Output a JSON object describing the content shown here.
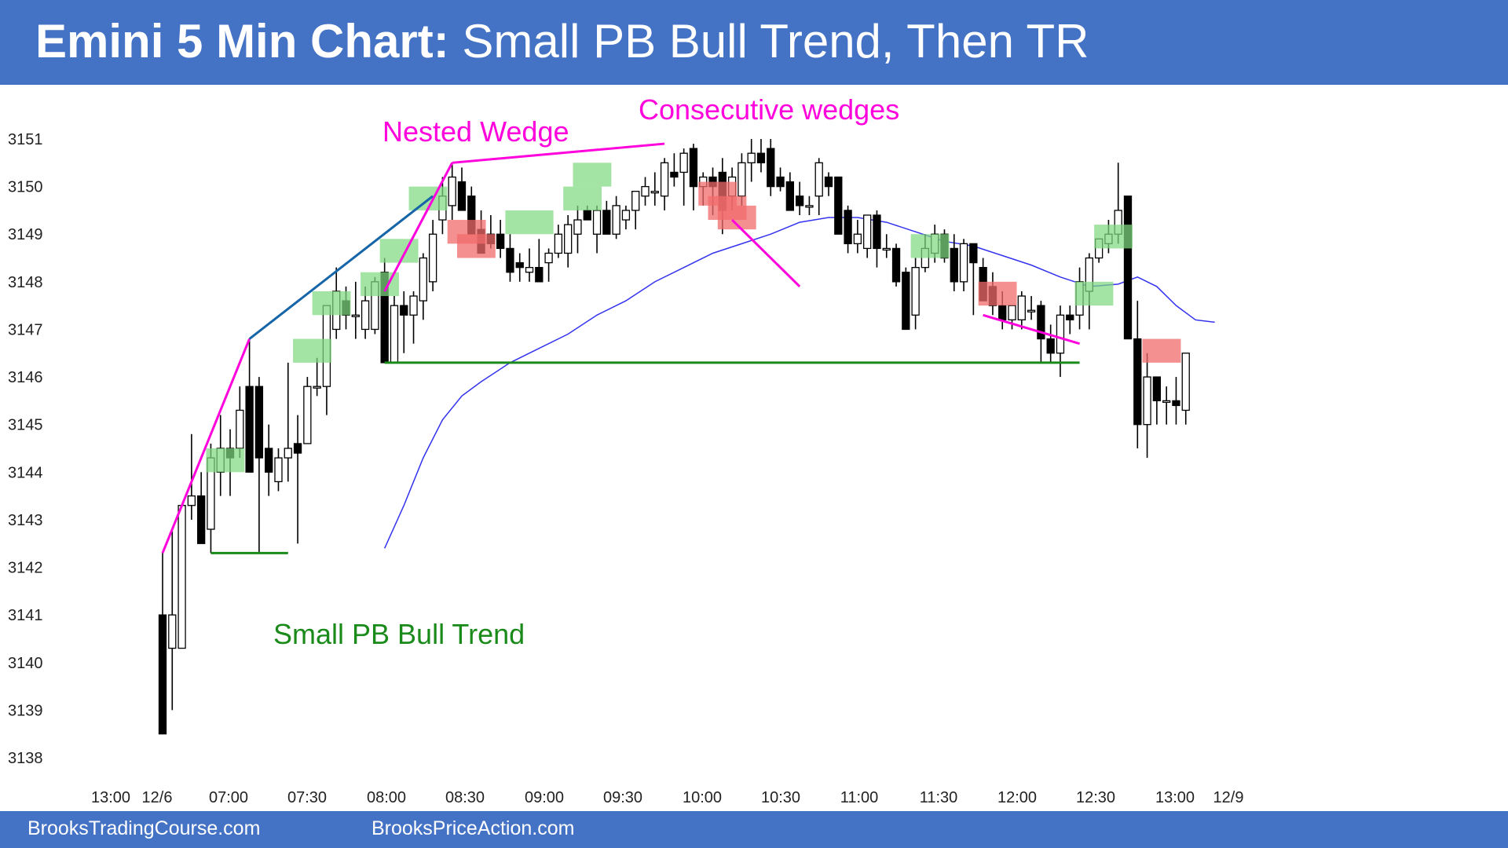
{
  "header": {
    "title_bold": "Emini 5 Min Chart:",
    "title_rest": "Small PB Bull Trend, Then TR"
  },
  "footer": {
    "left": "BrooksTradingCourse.com",
    "right": "BrooksPriceAction.com"
  },
  "chart_data": {
    "type": "candlestick",
    "ylim": [
      3138,
      3151
    ],
    "y_ticks": [
      3151,
      3150,
      3149,
      3148,
      3147,
      3146,
      3145,
      3144,
      3143,
      3142,
      3141,
      3140,
      3139,
      3138
    ],
    "x_tick_labels": [
      "13:00",
      "12/6",
      "07:00",
      "07:30",
      "08:00",
      "08:30",
      "09:00",
      "09:30",
      "10:00",
      "10:30",
      "11:00",
      "11:30",
      "12:00",
      "12:30",
      "13:00",
      "12/9"
    ],
    "grid": false,
    "legend": "none",
    "colors": {
      "up": "#ffffff",
      "down": "#000000",
      "ema": "#3333ee",
      "green_box": "#7fd87f",
      "red_box": "#f26b6b",
      "magenta": "#ff00dd",
      "blue": "#1565a8",
      "green_line": "#1a8a1a"
    },
    "bars": [
      {
        "o": 3141.0,
        "h": 3142.3,
        "l": 3138.5,
        "c": 3138.5
      },
      {
        "o": 3140.3,
        "h": 3142.8,
        "l": 3139.0,
        "c": 3141.0
      },
      {
        "o": 3140.3,
        "h": 3143.3,
        "l": 3140.3,
        "c": 3143.3
      },
      {
        "o": 3143.3,
        "h": 3144.8,
        "l": 3143.0,
        "c": 3143.5
      },
      {
        "o": 3143.5,
        "h": 3144.0,
        "l": 3142.5,
        "c": 3142.5
      },
      {
        "o": 3142.8,
        "h": 3144.6,
        "l": 3142.3,
        "c": 3144.3
      },
      {
        "o": 3144.0,
        "h": 3145.2,
        "l": 3143.5,
        "c": 3144.5
      },
      {
        "o": 3144.5,
        "h": 3144.9,
        "l": 3143.5,
        "c": 3144.3
      },
      {
        "o": 3144.5,
        "h": 3145.8,
        "l": 3144.3,
        "c": 3145.3
      },
      {
        "o": 3145.8,
        "h": 3146.8,
        "l": 3144.0,
        "c": 3144.0
      },
      {
        "o": 3145.8,
        "h": 3146.0,
        "l": 3142.3,
        "c": 3144.3
      },
      {
        "o": 3144.5,
        "h": 3145.0,
        "l": 3143.5,
        "c": 3144.0
      },
      {
        "o": 3143.8,
        "h": 3144.5,
        "l": 3143.6,
        "c": 3144.3
      },
      {
        "o": 3144.3,
        "h": 3146.3,
        "l": 3143.8,
        "c": 3144.5
      },
      {
        "o": 3144.6,
        "h": 3145.2,
        "l": 3142.5,
        "c": 3144.4
      },
      {
        "o": 3144.6,
        "h": 3146.0,
        "l": 3144.6,
        "c": 3145.8
      },
      {
        "o": 3145.8,
        "h": 3146.4,
        "l": 3145.6,
        "c": 3145.8
      },
      {
        "o": 3145.8,
        "h": 3147.5,
        "l": 3145.2,
        "c": 3147.5
      },
      {
        "o": 3147.0,
        "h": 3148.3,
        "l": 3146.8,
        "c": 3147.8
      },
      {
        "o": 3147.6,
        "h": 3147.9,
        "l": 3147.0,
        "c": 3147.3
      },
      {
        "o": 3147.3,
        "h": 3148.0,
        "l": 3146.8,
        "c": 3147.3
      },
      {
        "o": 3147.0,
        "h": 3147.9,
        "l": 3146.8,
        "c": 3147.6
      },
      {
        "o": 3147.0,
        "h": 3148.1,
        "l": 3146.9,
        "c": 3148.0
      },
      {
        "o": 3148.2,
        "h": 3148.5,
        "l": 3146.3,
        "c": 3146.3
      },
      {
        "o": 3146.3,
        "h": 3147.7,
        "l": 3146.3,
        "c": 3147.5
      },
      {
        "o": 3147.5,
        "h": 3147.8,
        "l": 3146.5,
        "c": 3147.3
      },
      {
        "o": 3147.3,
        "h": 3147.8,
        "l": 3146.7,
        "c": 3147.7
      },
      {
        "o": 3147.6,
        "h": 3148.6,
        "l": 3147.2,
        "c": 3148.5
      },
      {
        "o": 3148.0,
        "h": 3149.3,
        "l": 3147.8,
        "c": 3149.0
      },
      {
        "o": 3149.3,
        "h": 3150.2,
        "l": 3149.0,
        "c": 3149.8
      },
      {
        "o": 3149.6,
        "h": 3150.5,
        "l": 3149.3,
        "c": 3150.2
      },
      {
        "o": 3150.1,
        "h": 3150.4,
        "l": 3149.5,
        "c": 3149.5
      },
      {
        "o": 3149.8,
        "h": 3150.0,
        "l": 3149.0,
        "c": 3149.0
      },
      {
        "o": 3149.1,
        "h": 3149.5,
        "l": 3148.6,
        "c": 3148.6
      },
      {
        "o": 3149.0,
        "h": 3149.4,
        "l": 3148.7,
        "c": 3148.8
      },
      {
        "o": 3149.0,
        "h": 3149.3,
        "l": 3148.5,
        "c": 3148.7
      },
      {
        "o": 3148.7,
        "h": 3149.0,
        "l": 3148.0,
        "c": 3148.2
      },
      {
        "o": 3148.4,
        "h": 3148.6,
        "l": 3148.0,
        "c": 3148.3
      },
      {
        "o": 3148.2,
        "h": 3148.7,
        "l": 3148.0,
        "c": 3148.3
      },
      {
        "o": 3148.3,
        "h": 3148.9,
        "l": 3148.0,
        "c": 3148.0
      },
      {
        "o": 3148.4,
        "h": 3148.7,
        "l": 3148.0,
        "c": 3148.6
      },
      {
        "o": 3148.6,
        "h": 3149.2,
        "l": 3148.5,
        "c": 3149.0
      },
      {
        "o": 3148.6,
        "h": 3149.4,
        "l": 3148.3,
        "c": 3149.2
      },
      {
        "o": 3149.0,
        "h": 3149.6,
        "l": 3148.6,
        "c": 3149.3
      },
      {
        "o": 3149.5,
        "h": 3149.6,
        "l": 3149.3,
        "c": 3149.3
      },
      {
        "o": 3149.0,
        "h": 3149.6,
        "l": 3148.6,
        "c": 3149.5
      },
      {
        "o": 3149.5,
        "h": 3149.7,
        "l": 3149.0,
        "c": 3149.0
      },
      {
        "o": 3149.0,
        "h": 3149.8,
        "l": 3148.9,
        "c": 3149.6
      },
      {
        "o": 3149.3,
        "h": 3149.6,
        "l": 3149.1,
        "c": 3149.5
      },
      {
        "o": 3149.5,
        "h": 3149.9,
        "l": 3149.1,
        "c": 3149.9
      },
      {
        "o": 3149.8,
        "h": 3150.2,
        "l": 3149.6,
        "c": 3150.0
      },
      {
        "o": 3149.9,
        "h": 3150.3,
        "l": 3149.6,
        "c": 3149.9
      },
      {
        "o": 3149.8,
        "h": 3150.6,
        "l": 3149.5,
        "c": 3150.5
      },
      {
        "o": 3150.3,
        "h": 3150.7,
        "l": 3150.0,
        "c": 3150.2
      },
      {
        "o": 3150.3,
        "h": 3150.8,
        "l": 3149.6,
        "c": 3150.7
      },
      {
        "o": 3150.8,
        "h": 3150.9,
        "l": 3149.5,
        "c": 3150.0
      },
      {
        "o": 3150.0,
        "h": 3150.3,
        "l": 3149.6,
        "c": 3150.2
      },
      {
        "o": 3150.2,
        "h": 3150.4,
        "l": 3149.4,
        "c": 3150.0
      },
      {
        "o": 3150.3,
        "h": 3150.6,
        "l": 3149.0,
        "c": 3149.5
      },
      {
        "o": 3149.8,
        "h": 3150.4,
        "l": 3149.5,
        "c": 3150.2
      },
      {
        "o": 3149.8,
        "h": 3150.7,
        "l": 3149.6,
        "c": 3150.5
      },
      {
        "o": 3150.5,
        "h": 3151.0,
        "l": 3150.1,
        "c": 3150.7
      },
      {
        "o": 3150.7,
        "h": 3151.0,
        "l": 3150.3,
        "c": 3150.5
      },
      {
        "o": 3150.8,
        "h": 3151.0,
        "l": 3149.8,
        "c": 3150.0
      },
      {
        "o": 3150.2,
        "h": 3150.4,
        "l": 3149.9,
        "c": 3150.0
      },
      {
        "o": 3150.1,
        "h": 3150.3,
        "l": 3149.5,
        "c": 3149.5
      },
      {
        "o": 3149.8,
        "h": 3150.1,
        "l": 3149.4,
        "c": 3149.6
      },
      {
        "o": 3149.6,
        "h": 3149.8,
        "l": 3149.4,
        "c": 3149.6
      },
      {
        "o": 3149.8,
        "h": 3150.6,
        "l": 3149.4,
        "c": 3150.5
      },
      {
        "o": 3150.2,
        "h": 3150.3,
        "l": 3149.8,
        "c": 3150.0
      },
      {
        "o": 3150.2,
        "h": 3150.2,
        "l": 3149.0,
        "c": 3149.0
      },
      {
        "o": 3149.5,
        "h": 3149.6,
        "l": 3148.6,
        "c": 3148.8
      },
      {
        "o": 3148.8,
        "h": 3149.3,
        "l": 3148.6,
        "c": 3149.0
      },
      {
        "o": 3148.7,
        "h": 3149.4,
        "l": 3148.5,
        "c": 3149.4
      },
      {
        "o": 3149.4,
        "h": 3149.5,
        "l": 3148.3,
        "c": 3148.7
      },
      {
        "o": 3148.7,
        "h": 3149.0,
        "l": 3148.5,
        "c": 3148.7
      },
      {
        "o": 3148.7,
        "h": 3148.8,
        "l": 3147.9,
        "c": 3148.0
      },
      {
        "o": 3148.2,
        "h": 3148.3,
        "l": 3147.0,
        "c": 3147.0
      },
      {
        "o": 3147.3,
        "h": 3148.5,
        "l": 3147.0,
        "c": 3148.3
      },
      {
        "o": 3148.3,
        "h": 3149.0,
        "l": 3148.2,
        "c": 3148.7
      },
      {
        "o": 3148.6,
        "h": 3149.2,
        "l": 3148.4,
        "c": 3149.0
      },
      {
        "o": 3149.0,
        "h": 3149.1,
        "l": 3148.4,
        "c": 3148.5
      },
      {
        "o": 3148.7,
        "h": 3149.0,
        "l": 3147.8,
        "c": 3148.0
      },
      {
        "o": 3148.0,
        "h": 3148.9,
        "l": 3147.8,
        "c": 3148.8
      },
      {
        "o": 3148.8,
        "h": 3148.8,
        "l": 3147.3,
        "c": 3148.4
      },
      {
        "o": 3148.3,
        "h": 3148.5,
        "l": 3147.6,
        "c": 3147.6
      },
      {
        "o": 3147.9,
        "h": 3148.2,
        "l": 3147.3,
        "c": 3147.5
      },
      {
        "o": 3147.5,
        "h": 3147.8,
        "l": 3147.0,
        "c": 3147.2
      },
      {
        "o": 3147.2,
        "h": 3147.5,
        "l": 3147.0,
        "c": 3147.5
      },
      {
        "o": 3147.2,
        "h": 3147.8,
        "l": 3147.0,
        "c": 3147.7
      },
      {
        "o": 3147.4,
        "h": 3147.7,
        "l": 3147.2,
        "c": 3147.4
      },
      {
        "o": 3147.5,
        "h": 3147.6,
        "l": 3146.3,
        "c": 3146.8
      },
      {
        "o": 3146.8,
        "h": 3147.1,
        "l": 3146.3,
        "c": 3146.5
      },
      {
        "o": 3146.5,
        "h": 3147.5,
        "l": 3146.0,
        "c": 3147.3
      },
      {
        "o": 3147.3,
        "h": 3147.5,
        "l": 3146.9,
        "c": 3147.2
      },
      {
        "o": 3147.3,
        "h": 3148.3,
        "l": 3147.0,
        "c": 3148.0
      },
      {
        "o": 3147.8,
        "h": 3148.6,
        "l": 3147.0,
        "c": 3148.5
      },
      {
        "o": 3148.5,
        "h": 3148.9,
        "l": 3148.4,
        "c": 3148.9
      },
      {
        "o": 3148.8,
        "h": 3149.3,
        "l": 3148.6,
        "c": 3149.0
      },
      {
        "o": 3149.0,
        "h": 3150.5,
        "l": 3148.8,
        "c": 3149.5
      },
      {
        "o": 3149.8,
        "h": 3149.8,
        "l": 3146.8,
        "c": 3146.8
      },
      {
        "o": 3146.8,
        "h": 3147.6,
        "l": 3144.5,
        "c": 3145.0
      },
      {
        "o": 3145.0,
        "h": 3146.5,
        "l": 3144.3,
        "c": 3146.0
      },
      {
        "o": 3146.0,
        "h": 3146.0,
        "l": 3145.0,
        "c": 3145.5
      },
      {
        "o": 3145.5,
        "h": 3145.8,
        "l": 3145.0,
        "c": 3145.5
      },
      {
        "o": 3145.5,
        "h": 3146.0,
        "l": 3145.0,
        "c": 3145.4
      },
      {
        "o": 3145.3,
        "h": 3146.5,
        "l": 3145.0,
        "c": 3146.5
      }
    ],
    "ema": [
      {
        "i": 23,
        "v": 3142.4
      },
      {
        "i": 25,
        "v": 3143.3
      },
      {
        "i": 27,
        "v": 3144.3
      },
      {
        "i": 29,
        "v": 3145.1
      },
      {
        "i": 31,
        "v": 3145.6
      },
      {
        "i": 33,
        "v": 3145.9
      },
      {
        "i": 36,
        "v": 3146.3
      },
      {
        "i": 39,
        "v": 3146.6
      },
      {
        "i": 42,
        "v": 3146.9
      },
      {
        "i": 45,
        "v": 3147.3
      },
      {
        "i": 48,
        "v": 3147.6
      },
      {
        "i": 51,
        "v": 3148.0
      },
      {
        "i": 54,
        "v": 3148.3
      },
      {
        "i": 57,
        "v": 3148.6
      },
      {
        "i": 60,
        "v": 3148.8
      },
      {
        "i": 63,
        "v": 3149.0
      },
      {
        "i": 66,
        "v": 3149.25
      },
      {
        "i": 69,
        "v": 3149.35
      },
      {
        "i": 72,
        "v": 3149.35
      },
      {
        "i": 75,
        "v": 3149.25
      },
      {
        "i": 78,
        "v": 3149.05
      },
      {
        "i": 81,
        "v": 3148.85
      },
      {
        "i": 84,
        "v": 3148.75
      },
      {
        "i": 87,
        "v": 3148.55
      },
      {
        "i": 90,
        "v": 3148.35
      },
      {
        "i": 93,
        "v": 3148.1
      },
      {
        "i": 96,
        "v": 3147.9
      },
      {
        "i": 99,
        "v": 3147.95
      },
      {
        "i": 101,
        "v": 3148.1
      },
      {
        "i": 103,
        "v": 3147.9
      },
      {
        "i": 105,
        "v": 3147.5
      },
      {
        "i": 107,
        "v": 3147.2
      },
      {
        "i": 109,
        "v": 3147.15
      }
    ],
    "green_boxes": [
      {
        "i0": 5,
        "i1": 8,
        "top": 3144.5,
        "bot": 3144.0
      },
      {
        "i0": 14,
        "i1": 17,
        "top": 3146.8,
        "bot": 3146.3
      },
      {
        "i0": 16,
        "i1": 19,
        "top": 3147.8,
        "bot": 3147.3
      },
      {
        "i0": 21,
        "i1": 24,
        "top": 3148.2,
        "bot": 3147.7
      },
      {
        "i0": 23,
        "i1": 26,
        "top": 3148.9,
        "bot": 3148.4
      },
      {
        "i0": 26,
        "i1": 29,
        "top": 3150.0,
        "bot": 3149.5
      },
      {
        "i0": 36,
        "i1": 40,
        "top": 3149.5,
        "bot": 3149.0
      },
      {
        "i0": 42,
        "i1": 45,
        "top": 3150.0,
        "bot": 3149.5
      },
      {
        "i0": 43,
        "i1": 46,
        "top": 3150.5,
        "bot": 3150.0
      },
      {
        "i0": 78,
        "i1": 81,
        "top": 3149.0,
        "bot": 3148.5
      },
      {
        "i0": 95,
        "i1": 98,
        "top": 3148.0,
        "bot": 3147.5
      },
      {
        "i0": 97,
        "i1": 100,
        "top": 3149.2,
        "bot": 3148.7
      }
    ],
    "red_boxes": [
      {
        "i0": 30,
        "i1": 33,
        "top": 3149.3,
        "bot": 3148.8
      },
      {
        "i0": 31,
        "i1": 34,
        "top": 3149.0,
        "bot": 3148.5
      },
      {
        "i0": 56,
        "i1": 59,
        "top": 3150.1,
        "bot": 3149.6
      },
      {
        "i0": 57,
        "i1": 60,
        "top": 3149.8,
        "bot": 3149.3
      },
      {
        "i0": 58,
        "i1": 61,
        "top": 3149.6,
        "bot": 3149.1
      },
      {
        "i0": 85,
        "i1": 88,
        "top": 3148.0,
        "bot": 3147.5
      },
      {
        "i0": 102,
        "i1": 105,
        "top": 3146.8,
        "bot": 3146.3
      }
    ],
    "lines": [
      {
        "color": "magenta",
        "pts": [
          [
            0,
            3142.3
          ],
          [
            9,
            3146.8
          ]
        ]
      },
      {
        "color": "blue",
        "pts": [
          [
            9,
            3146.8
          ],
          [
            28,
            3149.8
          ]
        ]
      },
      {
        "color": "magenta",
        "pts": [
          [
            23,
            3147.8
          ],
          [
            30,
            3150.5
          ]
        ]
      },
      {
        "color": "magenta",
        "pts": [
          [
            30,
            3150.5
          ],
          [
            52,
            3150.9
          ]
        ]
      },
      {
        "color": "magenta",
        "pts": [
          [
            59,
            3149.3
          ],
          [
            66,
            3147.9
          ]
        ]
      },
      {
        "color": "magenta",
        "pts": [
          [
            85,
            3147.3
          ],
          [
            95,
            3146.7
          ]
        ]
      },
      {
        "color": "green_line",
        "pts": [
          [
            5,
            3142.3
          ],
          [
            13,
            3142.3
          ]
        ]
      },
      {
        "color": "green_line",
        "pts": [
          [
            23,
            3146.3
          ],
          [
            95,
            3146.3
          ]
        ]
      }
    ],
    "annotations": [
      {
        "id": "nested-wedge",
        "text": "Nested Wedge",
        "color": "magenta"
      },
      {
        "id": "consecutive-wedges",
        "text": "Consecutive wedges",
        "color": "magenta"
      },
      {
        "id": "small-pb",
        "text": "Small PB Bull Trend",
        "color": "green_line"
      }
    ]
  }
}
